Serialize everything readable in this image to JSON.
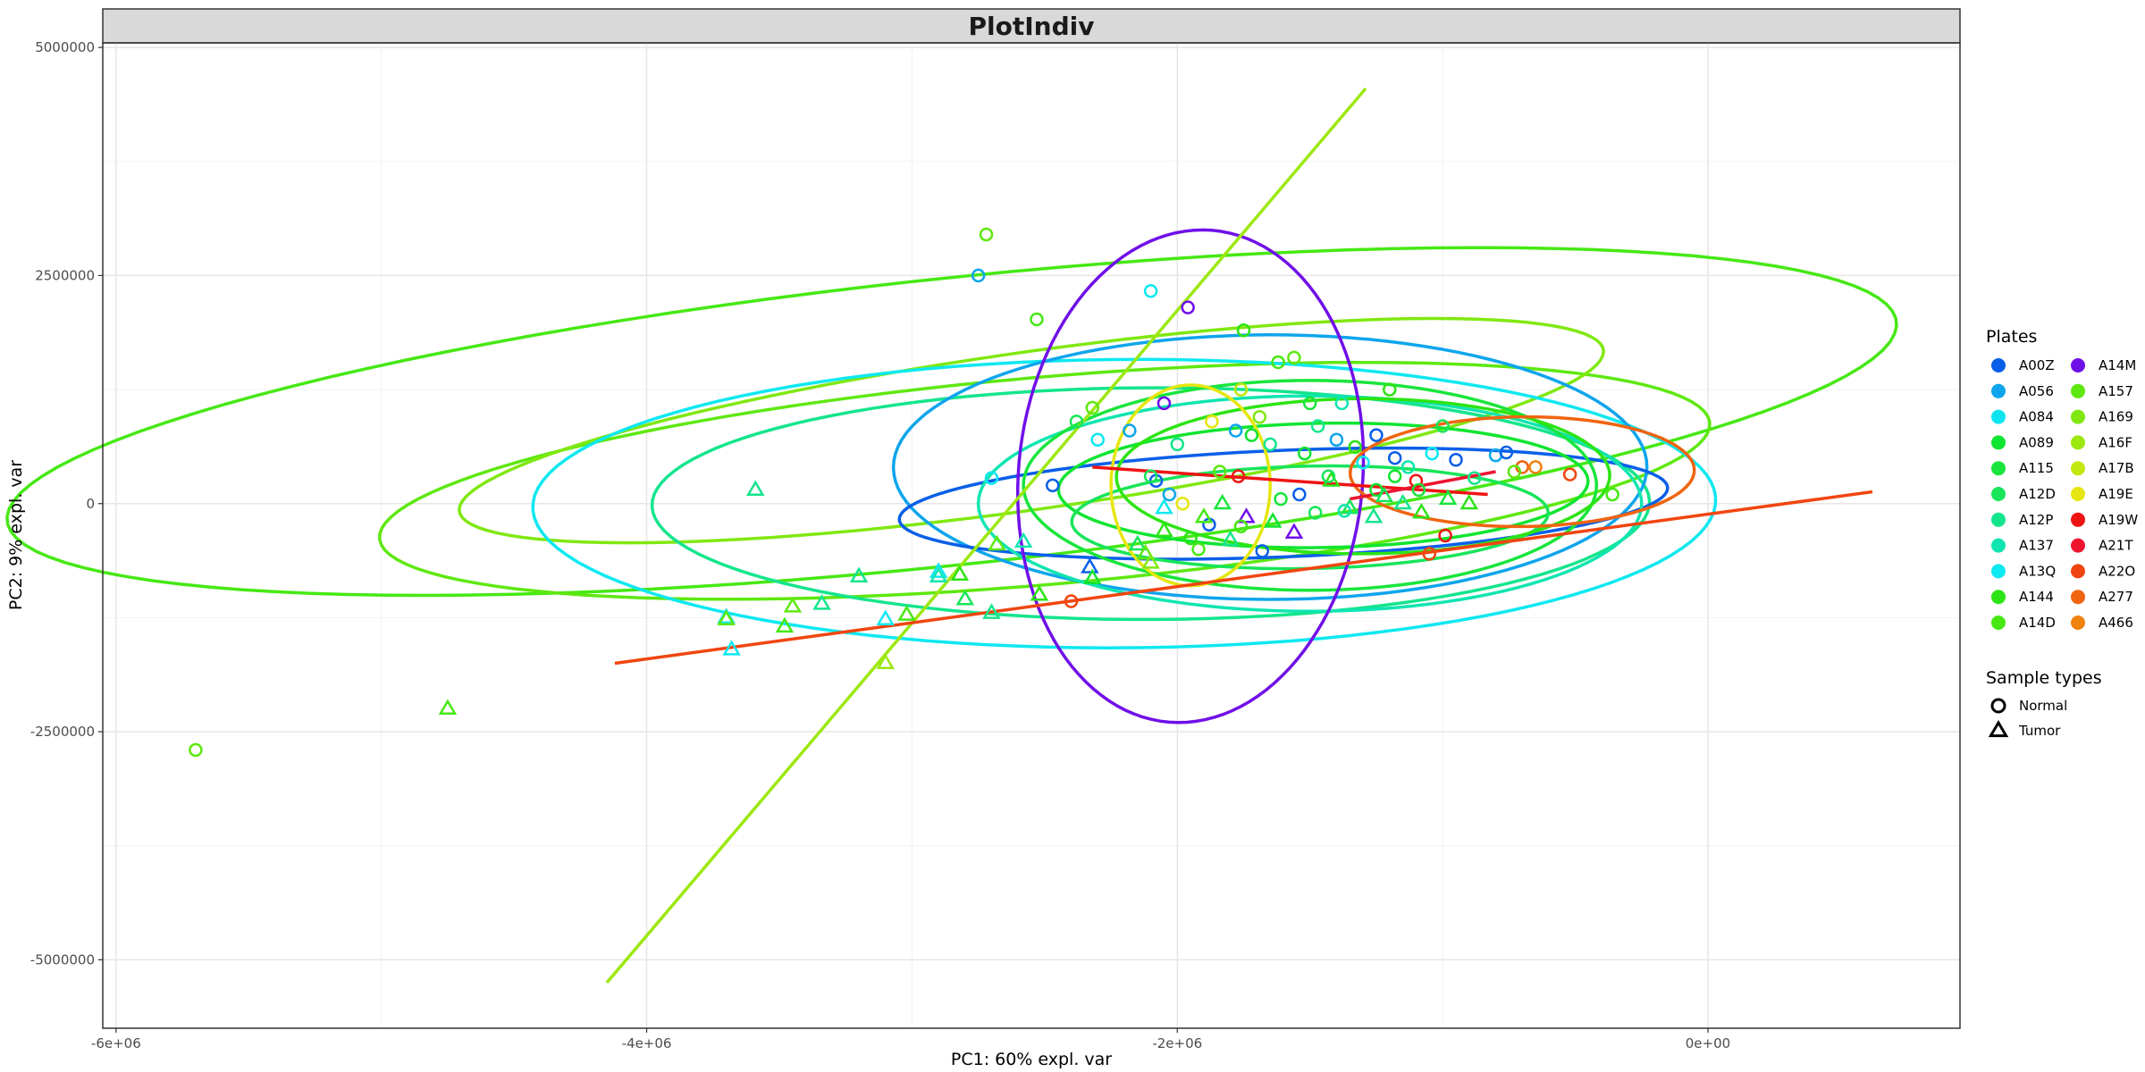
{
  "chart_data": {
    "type": "scatter",
    "title": "PlotIndiv",
    "xlabel": "PC1: 60% expl. var",
    "ylabel": "PC2: 9% expl. var",
    "xlim": [
      -6050000,
      950000
    ],
    "ylim": [
      -5750000,
      5050000
    ],
    "x_ticks": [
      -6000000,
      -4000000,
      -2000000,
      0
    ],
    "x_tick_labels": [
      "-6e+06",
      "-4e+06",
      "-2e+06",
      "0e+00"
    ],
    "y_ticks": [
      -5000000,
      -2500000,
      0,
      2500000,
      5000000
    ],
    "y_tick_labels": [
      "-5000000",
      "-2500000",
      "0",
      "2500000",
      "5000000"
    ],
    "grid": true,
    "legend_position": "right",
    "plates_legend": {
      "title": "Plates",
      "entries": [
        {
          "name": "A00Z",
          "color": "#0a5fe8"
        },
        {
          "name": "A056",
          "color": "#0ea5ec"
        },
        {
          "name": "A084",
          "color": "#0ee4f0"
        },
        {
          "name": "A089",
          "color": "#10e530"
        },
        {
          "name": "A115",
          "color": "#19e53c"
        },
        {
          "name": "A12D",
          "color": "#18e55a"
        },
        {
          "name": "A12P",
          "color": "#14e58c"
        },
        {
          "name": "A137",
          "color": "#10e5b0"
        },
        {
          "name": "A13Q",
          "color": "#0ee8f0"
        },
        {
          "name": "A144",
          "color": "#2ce414"
        },
        {
          "name": "A14D",
          "color": "#46e814"
        },
        {
          "name": "A14M",
          "color": "#7010e8"
        },
        {
          "name": "A157",
          "color": "#5ee810"
        },
        {
          "name": "A169",
          "color": "#80e810"
        },
        {
          "name": "A16F",
          "color": "#9ce810"
        },
        {
          "name": "A17B",
          "color": "#c2e810"
        },
        {
          "name": "A19E",
          "color": "#e6e610"
        },
        {
          "name": "A19W",
          "color": "#ee1414"
        },
        {
          "name": "A21T",
          "color": "#ee1430"
        },
        {
          "name": "A22O",
          "color": "#f04510"
        },
        {
          "name": "A277",
          "color": "#f06410"
        },
        {
          "name": "A466",
          "color": "#f08210"
        }
      ]
    },
    "sample_types_legend": {
      "title": "Sample types",
      "entries": [
        {
          "name": "Normal",
          "shape": "circle"
        },
        {
          "name": "Tumor",
          "shape": "triangle"
        }
      ]
    },
    "ellipses": [
      {
        "plate": "A14D",
        "cx": -2850000,
        "cy": 900000,
        "rx": 3750000,
        "ry": 1500000,
        "angle": 20
      },
      {
        "plate": "A157",
        "cx": -2500000,
        "cy": 250000,
        "rx": 2600000,
        "ry": 1100000,
        "angle": 17
      },
      {
        "plate": "A169",
        "cx": -2550000,
        "cy": 800000,
        "rx": 2350000,
        "ry": 800000,
        "angle": 25
      },
      {
        "plate": "A13Q",
        "cx": -2200000,
        "cy": 0,
        "rx": 2230000,
        "ry": 1580000,
        "angle": 2
      },
      {
        "plate": "A12P",
        "cx": -2100000,
        "cy": 0,
        "rx": 1880000,
        "ry": 1270000,
        "angle": 1
      },
      {
        "plate": "A056",
        "cx": -1650000,
        "cy": 400000,
        "rx": 1420000,
        "ry": 1450000,
        "angle": -3
      },
      {
        "plate": "A00Z",
        "cx": -1600000,
        "cy": 0,
        "rx": 1460000,
        "ry": 580000,
        "angle": 8
      },
      {
        "plate": "A137",
        "cx": -1500000,
        "cy": 0,
        "rx": 1250000,
        "ry": 1180000,
        "angle": 0
      },
      {
        "plate": "A115",
        "cx": -1500000,
        "cy": 200000,
        "rx": 1080000,
        "ry": 1150000,
        "angle": 0
      },
      {
        "plate": "A089",
        "cx": -1450000,
        "cy": 200000,
        "rx": 1000000,
        "ry": 680000,
        "angle": 5
      },
      {
        "plate": "A12D",
        "cx": -1500000,
        "cy": -150000,
        "rx": 900000,
        "ry": 560000,
        "angle": 5
      },
      {
        "plate": "A144",
        "cx": -1300000,
        "cy": 300000,
        "rx": 930000,
        "ry": 850000,
        "angle": 3
      },
      {
        "plate": "A19E",
        "cx": -1950000,
        "cy": 200000,
        "rx": 300000,
        "ry": 1100000,
        "angle": 0
      },
      {
        "plate": "A14M",
        "cx": -1950000,
        "cy": 300000,
        "rx": 650000,
        "ry": 2700000,
        "angle": -1
      },
      {
        "plate": "A277",
        "cx": -700000,
        "cy": 350000,
        "rx": 650000,
        "ry": 600000,
        "angle": 10
      }
    ],
    "segments": [
      {
        "plate": "A16F",
        "x1": -4150000,
        "y1": -5250000,
        "x2": -1290000,
        "y2": 4550000
      },
      {
        "plate": "A22O",
        "x1": -4120000,
        "y1": -1750000,
        "x2": 620000,
        "y2": 130000
      },
      {
        "plate": "A19W",
        "x1": -2320000,
        "y1": 400000,
        "x2": -830000,
        "y2": 100000
      },
      {
        "plate": "A21T",
        "x1": -1350000,
        "y1": 50000,
        "x2": -800000,
        "y2": 350000
      }
    ],
    "points": [
      {
        "plate": "A157",
        "type": "Normal",
        "x": -5700000,
        "y": -2700000
      },
      {
        "plate": "A14D",
        "type": "Tumor",
        "x": -4750000,
        "y": -2250000
      },
      {
        "plate": "A157",
        "type": "Normal",
        "x": -2720000,
        "y": 2950000
      },
      {
        "plate": "A056",
        "type": "Normal",
        "x": -2750000,
        "y": 2500000
      },
      {
        "plate": "A14D",
        "type": "Normal",
        "x": -2530000,
        "y": 2020000
      },
      {
        "plate": "A13Q",
        "type": "Normal",
        "x": -2100000,
        "y": 2330000
      },
      {
        "plate": "A14M",
        "type": "Normal",
        "x": -1960000,
        "y": 2150000
      },
      {
        "plate": "A144",
        "type": "Normal",
        "x": -1750000,
        "y": 1900000
      },
      {
        "plate": "A12P",
        "type": "Tumor",
        "x": -3590000,
        "y": 150000
      },
      {
        "plate": "A13Q",
        "type": "Tumor",
        "x": -3700000,
        "y": -1250000
      },
      {
        "plate": "A157",
        "type": "Tumor",
        "x": -3700000,
        "y": -1270000
      },
      {
        "plate": "A13Q",
        "type": "Tumor",
        "x": -3680000,
        "y": -1600000
      },
      {
        "plate": "A157",
        "type": "Tumor",
        "x": -3450000,
        "y": -1130000
      },
      {
        "plate": "A14D",
        "type": "Tumor",
        "x": -3480000,
        "y": -1350000
      },
      {
        "plate": "A12P",
        "type": "Tumor",
        "x": -3340000,
        "y": -1100000
      },
      {
        "plate": "A12P",
        "type": "Tumor",
        "x": -3200000,
        "y": -800000
      },
      {
        "plate": "A13Q",
        "type": "Tumor",
        "x": -3100000,
        "y": -1270000
      },
      {
        "plate": "A14D",
        "type": "Tumor",
        "x": -3020000,
        "y": -1220000
      },
      {
        "plate": "A13Q",
        "type": "Tumor",
        "x": -2900000,
        "y": -750000
      },
      {
        "plate": "A137",
        "type": "Tumor",
        "x": -2900000,
        "y": -800000
      },
      {
        "plate": "A144",
        "type": "Tumor",
        "x": -2820000,
        "y": -780000
      },
      {
        "plate": "A12D",
        "type": "Tumor",
        "x": -2800000,
        "y": -1050000
      },
      {
        "plate": "A12P",
        "type": "Tumor",
        "x": -2700000,
        "y": -1200000
      },
      {
        "plate": "A157",
        "type": "Tumor",
        "x": -2680000,
        "y": -450000
      },
      {
        "plate": "A137",
        "type": "Tumor",
        "x": -2580000,
        "y": -420000
      },
      {
        "plate": "A144",
        "type": "Tumor",
        "x": -2520000,
        "y": -1000000
      },
      {
        "plate": "A16F",
        "type": "Tumor",
        "x": -3100000,
        "y": -1750000
      },
      {
        "plate": "A22O",
        "type": "Normal",
        "x": -2400000,
        "y": -1070000
      },
      {
        "plate": "A00Z",
        "type": "Tumor",
        "x": -2330000,
        "y": -700000
      },
      {
        "plate": "A089",
        "type": "Tumor",
        "x": -2320000,
        "y": -820000
      },
      {
        "plate": "A12D",
        "type": "Tumor",
        "x": -2150000,
        "y": -450000
      },
      {
        "plate": "A144",
        "type": "Tumor",
        "x": -2050000,
        "y": -300000
      },
      {
        "plate": "A13Q",
        "type": "Normal",
        "x": -2700000,
        "y": 280000
      },
      {
        "plate": "A00Z",
        "type": "Normal",
        "x": -2470000,
        "y": 200000
      },
      {
        "plate": "A12D",
        "type": "Normal",
        "x": -2380000,
        "y": 900000
      },
      {
        "plate": "A13Q",
        "type": "Normal",
        "x": -2300000,
        "y": 700000
      },
      {
        "plate": "A157",
        "type": "Normal",
        "x": -2320000,
        "y": 1050000
      },
      {
        "plate": "A056",
        "type": "Normal",
        "x": -2180000,
        "y": 800000
      },
      {
        "plate": "A00Z",
        "type": "Normal",
        "x": -2080000,
        "y": 250000
      },
      {
        "plate": "A056",
        "type": "Normal",
        "x": -2030000,
        "y": 100000
      },
      {
        "plate": "A14M",
        "type": "Normal",
        "x": -2050000,
        "y": 1100000
      },
      {
        "plate": "A12P",
        "type": "Normal",
        "x": -2000000,
        "y": 650000
      },
      {
        "plate": "A19E",
        "type": "Normal",
        "x": -1980000,
        "y": 0
      },
      {
        "plate": "A14D",
        "type": "Normal",
        "x": -1920000,
        "y": -500000
      },
      {
        "plate": "A00Z",
        "type": "Normal",
        "x": -1880000,
        "y": -230000
      },
      {
        "plate": "A19E",
        "type": "Normal",
        "x": -1870000,
        "y": 900000
      },
      {
        "plate": "A157",
        "type": "Normal",
        "x": -1840000,
        "y": 350000
      },
      {
        "plate": "A056",
        "type": "Normal",
        "x": -1780000,
        "y": 800000
      },
      {
        "plate": "A19W",
        "type": "Normal",
        "x": -1770000,
        "y": 300000
      },
      {
        "plate": "A17B",
        "type": "Normal",
        "x": -1760000,
        "y": 1250000
      },
      {
        "plate": "A14M",
        "type": "Tumor",
        "x": -1740000,
        "y": -150000
      },
      {
        "plate": "A089",
        "type": "Normal",
        "x": -1720000,
        "y": 750000
      },
      {
        "plate": "A169",
        "type": "Normal",
        "x": -1690000,
        "y": 950000
      },
      {
        "plate": "A00Z",
        "type": "Normal",
        "x": -1680000,
        "y": -520000
      },
      {
        "plate": "A14D",
        "type": "Normal",
        "x": -1620000,
        "y": 1550000
      },
      {
        "plate": "A157",
        "type": "Normal",
        "x": -1560000,
        "y": 1600000
      },
      {
        "plate": "A115",
        "type": "Normal",
        "x": -1500000,
        "y": 1100000
      },
      {
        "plate": "A12P",
        "type": "Normal",
        "x": -1470000,
        "y": 850000
      },
      {
        "plate": "A00Z",
        "type": "Normal",
        "x": -1540000,
        "y": 100000
      },
      {
        "plate": "A14M",
        "type": "Tumor",
        "x": -1560000,
        "y": -320000
      },
      {
        "plate": "A089",
        "type": "Normal",
        "x": -1520000,
        "y": 550000
      },
      {
        "plate": "A12D",
        "type": "Normal",
        "x": -1480000,
        "y": -100000
      },
      {
        "plate": "A144",
        "type": "Tumor",
        "x": -1420000,
        "y": 250000
      },
      {
        "plate": "A056",
        "type": "Normal",
        "x": -1400000,
        "y": 700000
      },
      {
        "plate": "A137",
        "type": "Normal",
        "x": -1380000,
        "y": 1100000
      },
      {
        "plate": "A12D",
        "type": "Tumor",
        "x": -1350000,
        "y": -50000
      },
      {
        "plate": "A13Q",
        "type": "Normal",
        "x": -1300000,
        "y": 450000
      },
      {
        "plate": "A00Z",
        "type": "Normal",
        "x": -1250000,
        "y": 750000
      },
      {
        "plate": "A144",
        "type": "Normal",
        "x": -1200000,
        "y": 1250000
      },
      {
        "plate": "A089",
        "type": "Normal",
        "x": -1180000,
        "y": 300000
      },
      {
        "plate": "A00Z",
        "type": "Normal",
        "x": -1180000,
        "y": 500000
      },
      {
        "plate": "A12P",
        "type": "Tumor",
        "x": -1150000,
        "y": 0
      },
      {
        "plate": "A19W",
        "type": "Normal",
        "x": -1100000,
        "y": 250000
      },
      {
        "plate": "A144",
        "type": "Tumor",
        "x": -1080000,
        "y": -100000
      },
      {
        "plate": "A13Q",
        "type": "Normal",
        "x": -1040000,
        "y": 550000
      },
      {
        "plate": "A12D",
        "type": "Normal",
        "x": -1000000,
        "y": 850000
      },
      {
        "plate": "A22O",
        "type": "Normal",
        "x": -1050000,
        "y": -550000
      },
      {
        "plate": "A19W",
        "type": "Normal",
        "x": -990000,
        "y": -350000
      },
      {
        "plate": "A00Z",
        "type": "Normal",
        "x": -950000,
        "y": 480000
      },
      {
        "plate": "A115",
        "type": "Tumor",
        "x": -980000,
        "y": 50000
      },
      {
        "plate": "A056",
        "type": "Normal",
        "x": -800000,
        "y": 530000
      },
      {
        "plate": "A00Z",
        "type": "Normal",
        "x": -760000,
        "y": 560000
      },
      {
        "plate": "A277",
        "type": "Normal",
        "x": -700000,
        "y": 400000
      },
      {
        "plate": "A157",
        "type": "Normal",
        "x": -730000,
        "y": 350000
      },
      {
        "plate": "A466",
        "type": "Normal",
        "x": -650000,
        "y": 400000
      },
      {
        "plate": "A22O",
        "type": "Normal",
        "x": -520000,
        "y": 320000
      },
      {
        "plate": "A14D",
        "type": "Normal",
        "x": -360000,
        "y": 100000
      },
      {
        "plate": "A12P",
        "type": "Normal",
        "x": -1650000,
        "y": 650000
      },
      {
        "plate": "A089",
        "type": "Tumor",
        "x": -1640000,
        "y": -200000
      },
      {
        "plate": "A115",
        "type": "Normal",
        "x": -1610000,
        "y": 50000
      },
      {
        "plate": "A12D",
        "type": "Normal",
        "x": -1430000,
        "y": 300000
      },
      {
        "plate": "A137",
        "type": "Normal",
        "x": -1370000,
        "y": -80000
      },
      {
        "plate": "A12P",
        "type": "Tumor",
        "x": -1260000,
        "y": -150000
      },
      {
        "plate": "A144",
        "type": "Normal",
        "x": -1330000,
        "y": 620000
      },
      {
        "plate": "A089",
        "type": "Normal",
        "x": -1250000,
        "y": 150000
      },
      {
        "plate": "A12D",
        "type": "Tumor",
        "x": -1220000,
        "y": 80000
      },
      {
        "plate": "A137",
        "type": "Normal",
        "x": -1130000,
        "y": 400000
      },
      {
        "plate": "A115",
        "type": "Normal",
        "x": -1090000,
        "y": 150000
      },
      {
        "plate": "A144",
        "type": "Tumor",
        "x": -900000,
        "y": 0
      },
      {
        "plate": "A12P",
        "type": "Normal",
        "x": -880000,
        "y": 280000
      },
      {
        "plate": "A14D",
        "type": "Tumor",
        "x": -1900000,
        "y": -150000
      },
      {
        "plate": "A157",
        "type": "Tumor",
        "x": -2120000,
        "y": -550000
      },
      {
        "plate": "A169",
        "type": "Tumor",
        "x": -2100000,
        "y": -650000
      },
      {
        "plate": "A12D",
        "type": "Normal",
        "x": -2100000,
        "y": 300000
      },
      {
        "plate": "A13Q",
        "type": "Tumor",
        "x": -2050000,
        "y": -50000
      },
      {
        "plate": "A144",
        "type": "Normal",
        "x": -1950000,
        "y": -380000
      },
      {
        "plate": "A115",
        "type": "Tumor",
        "x": -1830000,
        "y": 0
      },
      {
        "plate": "A12P",
        "type": "Tumor",
        "x": -1800000,
        "y": -400000
      },
      {
        "plate": "A14D",
        "type": "Normal",
        "x": -1760000,
        "y": -250000
      }
    ]
  }
}
